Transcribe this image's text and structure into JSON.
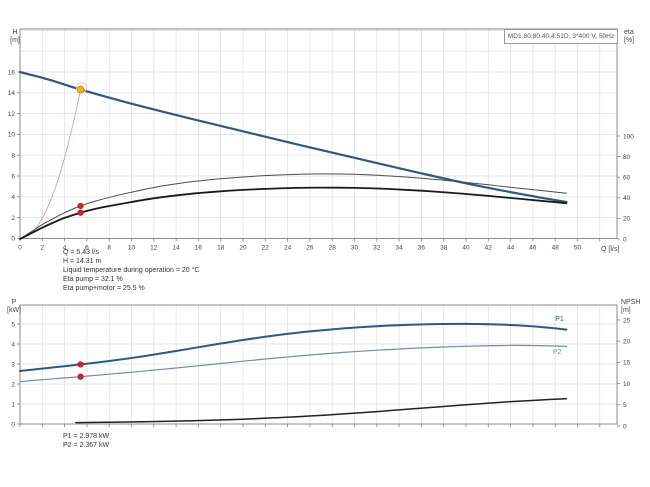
{
  "window": {
    "bg": "#ffffff"
  },
  "duty_info": {
    "lines": [
      "Q = 5.43 l/s",
      "H = 14.31 m",
      "Liquid temperature during operation = 20 °C",
      "Eta pump = 32.1 %",
      "Eta pump+motor = 25.5 %"
    ]
  },
  "power_info": {
    "lines": [
      "P1 = 2.978 kW",
      "P2 = 2.367 kW"
    ]
  },
  "colors": {
    "pump_curve": "#2d5986",
    "system_curve": "#cfa3a3",
    "eta_pump": "#4d4d4d",
    "eta_pump_motor": "#1a1a1a",
    "p1": "#2d5986",
    "p2": "#6b8cb3",
    "npsh": "#222222",
    "duty_marker": "#ffb300",
    "red_marker": "#d42626",
    "grid": "#dedede",
    "axis": "#808080"
  },
  "chart_data": [
    {
      "type": "line",
      "title": "MD1.80.80.40.4.51D, 3*400 V, 50Hz",
      "xlabel": "Q [l/s]",
      "xlim": [
        0,
        53.5
      ],
      "x_ticks": [
        0,
        2,
        4,
        6,
        8,
        10,
        12,
        14,
        16,
        18,
        20,
        22,
        24,
        26,
        28,
        30,
        32,
        34,
        36,
        38,
        40,
        42,
        44,
        46,
        48,
        50
      ],
      "grid": true,
      "axes": {
        "left": {
          "label": "H",
          "unit": "[m]",
          "ticks": [
            0,
            2,
            4,
            6,
            8,
            10,
            12,
            14,
            16
          ],
          "lim": [
            0,
            20
          ]
        },
        "right": {
          "label": "eta",
          "unit": "[%]",
          "ticks": [
            0,
            20,
            40,
            60,
            80,
            100
          ],
          "lim": [
            0,
            204
          ]
        }
      },
      "series": [
        {
          "name": "pump-curve",
          "scale": "left",
          "color": "#2d5986",
          "width": 2.2,
          "points": [
            [
              0,
              16
            ],
            [
              2.5,
              15.3
            ],
            [
              5.43,
              14.31
            ],
            [
              10,
              12.95
            ],
            [
              15,
              11.6
            ],
            [
              20,
              10.3
            ],
            [
              25,
              9.0
            ],
            [
              30,
              7.75
            ],
            [
              35,
              6.5
            ],
            [
              40,
              5.3
            ],
            [
              45,
              4.25
            ],
            [
              49,
              3.5
            ]
          ]
        },
        {
          "name": "system-curve",
          "scale": "left",
          "color": "#cfa3a3",
          "width": 0.9,
          "points": [
            [
              0,
              0
            ],
            [
              1,
              0.49
            ],
            [
              2,
              1.94
            ],
            [
              3,
              4.37
            ],
            [
              4,
              7.76
            ],
            [
              5,
              12.13
            ],
            [
              5.43,
              14.31
            ]
          ]
        },
        {
          "name": "eta-pump-curve",
          "scale": "right",
          "color": "#4d4d4d",
          "width": 1,
          "points": [
            [
              0,
              0
            ],
            [
              1,
              7
            ],
            [
              2,
              14
            ],
            [
              3,
              20
            ],
            [
              4,
              25.5
            ],
            [
              5.43,
              32.1
            ],
            [
              7,
              37.5
            ],
            [
              9,
              43
            ],
            [
              12,
              50
            ],
            [
              15,
              55
            ],
            [
              18,
              58.5
            ],
            [
              21,
              61
            ],
            [
              24,
              62.5
            ],
            [
              27,
              63.2
            ],
            [
              30,
              62.8
            ],
            [
              33,
              61.3
            ],
            [
              36,
              59
            ],
            [
              39,
              56
            ],
            [
              42,
              52.6
            ],
            [
              45,
              49
            ],
            [
              49,
              44.5
            ]
          ]
        },
        {
          "name": "eta-pump-motor-curve",
          "scale": "right",
          "color": "#1a1a1a",
          "width": 1.8,
          "points": [
            [
              0,
              0
            ],
            [
              1,
              5.5
            ],
            [
              2,
              11
            ],
            [
              3,
              16
            ],
            [
              4,
              20.5
            ],
            [
              5.43,
              25.5
            ],
            [
              7,
              29.8
            ],
            [
              9,
              34
            ],
            [
              12,
              39.5
            ],
            [
              15,
              43.5
            ],
            [
              18,
              46.3
            ],
            [
              21,
              48.2
            ],
            [
              24,
              49.4
            ],
            [
              27,
              49.9
            ],
            [
              30,
              49.6
            ],
            [
              33,
              48.6
            ],
            [
              36,
              46.9
            ],
            [
              39,
              44.6
            ],
            [
              42,
              41.8
            ],
            [
              45,
              38.8
            ],
            [
              49,
              34.8
            ]
          ]
        }
      ],
      "markers": [
        {
          "name": "duty-point",
          "scale": "left",
          "q": 5.43,
          "v": 14.31,
          "fill": "#ffb300",
          "stroke": "#cc8400",
          "r": 3.4,
          "halo": "#e9c9c9"
        },
        {
          "name": "eta-pump-duty-dot",
          "scale": "right",
          "q": 5.43,
          "v": 32.1,
          "fill": "#d42626",
          "stroke": "#b01818",
          "r": 2.7
        },
        {
          "name": "eta-pump-motor-duty-dot",
          "scale": "right",
          "q": 5.43,
          "v": 25.5,
          "fill": "#d42626",
          "stroke": "#b01818",
          "r": 2.7
        }
      ]
    },
    {
      "type": "line",
      "title": "",
      "xlabel": "",
      "xlim": [
        0,
        53.5
      ],
      "x_ticks": [],
      "grid": true,
      "axes": {
        "left": {
          "label": "P",
          "unit": "[kW]",
          "ticks": [
            0,
            1,
            2,
            3,
            4,
            5
          ],
          "lim": [
            0,
            5.9
          ]
        },
        "right": {
          "label": "NPSH",
          "unit": "[m]",
          "ticks": [
            0,
            5,
            10,
            15,
            20,
            25
          ],
          "lim": [
            0,
            28
          ]
        }
      },
      "series": [
        {
          "name": "p1-curve",
          "scale": "left",
          "color": "#2d5986",
          "width": 2,
          "label": "P1",
          "label_at": [
            48.0,
            5.15
          ],
          "points": [
            [
              0,
              2.65
            ],
            [
              3,
              2.83
            ],
            [
              5.43,
              2.978
            ],
            [
              8,
              3.15
            ],
            [
              11,
              3.38
            ],
            [
              14,
              3.65
            ],
            [
              17,
              3.93
            ],
            [
              20,
              4.2
            ],
            [
              23,
              4.44
            ],
            [
              26,
              4.63
            ],
            [
              29,
              4.78
            ],
            [
              32,
              4.89
            ],
            [
              35,
              4.96
            ],
            [
              38,
              5.0
            ],
            [
              41,
              5.0
            ],
            [
              44,
              4.95
            ],
            [
              46.5,
              4.86
            ],
            [
              49,
              4.72
            ]
          ]
        },
        {
          "name": "p2-curve",
          "scale": "left",
          "color": "#6b8cb3",
          "width": 1.2,
          "label": "P2",
          "label_at": [
            47.8,
            3.5
          ],
          "points": [
            [
              0,
              2.12
            ],
            [
              3,
              2.26
            ],
            [
              5.43,
              2.367
            ],
            [
              8,
              2.49
            ],
            [
              11,
              2.64
            ],
            [
              14,
              2.8
            ],
            [
              17,
              2.97
            ],
            [
              20,
              3.14
            ],
            [
              23,
              3.3
            ],
            [
              26,
              3.45
            ],
            [
              29,
              3.58
            ],
            [
              32,
              3.69
            ],
            [
              35,
              3.78
            ],
            [
              38,
              3.85
            ],
            [
              41,
              3.9
            ],
            [
              44,
              3.93
            ],
            [
              46.5,
              3.92
            ],
            [
              49,
              3.88
            ]
          ]
        },
        {
          "name": "npsh-curve",
          "scale": "right",
          "color": "#222222",
          "width": 1.5,
          "points": [
            [
              5,
              0.8
            ],
            [
              8,
              0.9
            ],
            [
              11,
              1.0
            ],
            [
              14,
              1.15
            ],
            [
              17,
              1.35
            ],
            [
              20,
              1.6
            ],
            [
              23,
              1.95
            ],
            [
              26,
              2.35
            ],
            [
              29,
              2.85
            ],
            [
              32,
              3.4
            ],
            [
              35,
              4.0
            ],
            [
              38,
              4.6
            ],
            [
              41,
              5.2
            ],
            [
              44,
              5.75
            ],
            [
              46.5,
              6.1
            ],
            [
              49,
              6.45
            ]
          ]
        }
      ],
      "markers": [
        {
          "name": "p1-duty-dot",
          "scale": "left",
          "q": 5.43,
          "v": 2.978,
          "fill": "#d42626",
          "stroke": "#b01818",
          "r": 2.7
        },
        {
          "name": "p2-duty-dot",
          "scale": "left",
          "q": 5.43,
          "v": 2.367,
          "fill": "#d42626",
          "stroke": "#b01818",
          "r": 2.7
        }
      ]
    }
  ]
}
